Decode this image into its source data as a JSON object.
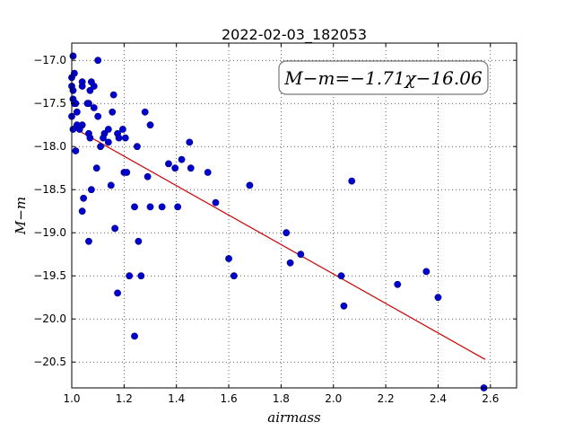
{
  "chart_data": {
    "type": "scatter",
    "title": "2022-02-03_182053",
    "xlabel": "airmass",
    "ylabel": "M−m",
    "annotation": "M−m=−1.71χ−16.06",
    "xlim": [
      1.0,
      2.7
    ],
    "ylim": [
      -20.8,
      -16.8
    ],
    "y_inverted": true,
    "grid": true,
    "x_ticks": [
      1.0,
      1.2,
      1.4,
      1.6,
      1.8,
      2.0,
      2.2,
      2.4,
      2.6
    ],
    "x_tick_labels": [
      "1.0",
      "1.2",
      "1.4",
      "1.6",
      "1.8",
      "2.0",
      "2.2",
      "2.4",
      "2.6"
    ],
    "y_ticks": [
      -17.0,
      -17.5,
      -18.0,
      -18.5,
      -19.0,
      -19.5,
      -20.0,
      -20.5
    ],
    "y_tick_labels": [
      "−17.0",
      "−17.5",
      "−18.0",
      "−18.5",
      "−19.0",
      "−19.5",
      "−20.0",
      "−20.5"
    ],
    "series": [
      {
        "kind": "points",
        "color": "#0000cc",
        "x": [
          1.005,
          1.0,
          1.0,
          1.005,
          1.01,
          1.005,
          1.015,
          1.02,
          1.04,
          1.04,
          1.065,
          1.075,
          1.07,
          1.085,
          1.1,
          1.0,
          1.01,
          1.02,
          1.06,
          1.085,
          1.16,
          1.155,
          1.1,
          1.04,
          1.03,
          1.005,
          1.065,
          1.07,
          1.14,
          1.125,
          1.12,
          1.175,
          1.18,
          1.195,
          1.205,
          1.11,
          1.14,
          1.28,
          1.3,
          1.25,
          1.015,
          1.095,
          1.2,
          1.21,
          1.045,
          1.075,
          1.15,
          1.29,
          1.37,
          1.395,
          1.42,
          1.45,
          1.455,
          1.52,
          1.68,
          1.04,
          1.24,
          1.3,
          1.345,
          1.405,
          1.55,
          1.065,
          1.165,
          1.255,
          1.175,
          1.22,
          1.265,
          1.24,
          1.6,
          1.62,
          1.82,
          1.835,
          1.875,
          2.03,
          2.04,
          2.07,
          2.245,
          2.355,
          2.4,
          2.575
        ],
        "y": [
          -16.95,
          -17.2,
          -17.3,
          -17.35,
          -17.15,
          -17.45,
          -17.5,
          -17.6,
          -17.25,
          -17.3,
          -17.5,
          -17.25,
          -17.35,
          -17.3,
          -17.0,
          -17.65,
          -17.5,
          -17.75,
          -17.5,
          -17.55,
          -17.4,
          -17.6,
          -17.65,
          -17.75,
          -17.8,
          -17.8,
          -17.85,
          -17.9,
          -17.8,
          -17.85,
          -17.9,
          -17.85,
          -17.9,
          -17.8,
          -17.9,
          -18.0,
          -17.95,
          -17.6,
          -17.75,
          -18.0,
          -18.05,
          -18.25,
          -18.3,
          -18.3,
          -18.6,
          -18.5,
          -18.45,
          -18.35,
          -18.2,
          -18.25,
          -18.15,
          -17.95,
          -18.25,
          -18.3,
          -18.45,
          -18.75,
          -18.7,
          -18.7,
          -18.7,
          -18.7,
          -18.65,
          -19.1,
          -18.95,
          -19.1,
          -19.7,
          -19.5,
          -19.5,
          -20.2,
          -19.3,
          -19.5,
          -19.0,
          -19.35,
          -19.25,
          -19.5,
          -19.85,
          -18.4,
          -19.6,
          -19.45,
          -19.75,
          -20.8
        ]
      },
      {
        "kind": "fit_line",
        "color": "#cc0000",
        "x": [
          1.0,
          2.58
        ],
        "y": [
          -17.77,
          -20.47
        ]
      }
    ]
  }
}
